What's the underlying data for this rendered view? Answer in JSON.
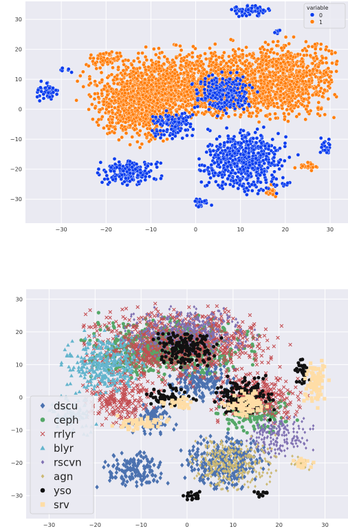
{
  "chart_data": [
    {
      "type": "scatter",
      "title": "",
      "xlabel": "",
      "ylabel": "",
      "xlim": [
        -38,
        34
      ],
      "ylim": [
        -38,
        36
      ],
      "xticks": [
        -30,
        -20,
        -10,
        0,
        10,
        20,
        30
      ],
      "yticks": [
        -30,
        -20,
        -10,
        0,
        10,
        20,
        30
      ],
      "grid": true,
      "legend": {
        "title": "variable",
        "position": "top-right",
        "marker": "circle"
      },
      "series": [
        {
          "name": "1",
          "color": "#ff7f0e",
          "regions": [
            {
              "center": [
                -1,
                8
              ],
              "extent": [
                -27,
                29,
                -3,
                27
              ]
            },
            {
              "center": [
                20,
                10
              ],
              "extent": [
                3,
                32,
                -5,
                28
              ]
            },
            {
              "center": [
                -13,
                1
              ],
              "extent": [
                -27,
                -2,
                -14,
                15
              ]
            },
            {
              "center": [
                -20,
                17
              ],
              "extent": [
                -24,
                -14,
                14,
                20
              ]
            },
            {
              "center": [
                17,
                -27
              ],
              "extent": [
                14,
                18,
                -31,
                -24
              ]
            },
            {
              "center": [
                25,
                -19
              ],
              "extent": [
                22,
                29,
                -21,
                -17
              ]
            }
          ]
        },
        {
          "name": "0",
          "color": "#0b3dee",
          "regions": [
            {
              "center": [
                11,
                -17
              ],
              "extent": [
                0,
                25,
                -30,
                -4
              ]
            },
            {
              "center": [
                -15,
                -21
              ],
              "extent": [
                -22,
                -4,
                -27,
                -16
              ]
            },
            {
              "center": [
                6,
                5
              ],
              "extent": [
                -2,
                15,
                -4,
                13
              ]
            },
            {
              "center": [
                -5,
                -5
              ],
              "extent": [
                -10,
                3,
                -11,
                0
              ]
            },
            {
              "center": [
                12,
                33
              ],
              "extent": [
                5,
                18,
                30,
                35
              ]
            },
            {
              "center": [
                -33,
                6
              ],
              "extent": [
                -36,
                -30,
                2,
                10
              ]
            },
            {
              "center": [
                -29,
                13
              ],
              "extent": [
                -31,
                -27,
                12,
                14
              ]
            },
            {
              "center": [
                1,
                -31
              ],
              "extent": [
                -3,
                4,
                -33,
                -29
              ]
            },
            {
              "center": [
                29,
                -12
              ],
              "extent": [
                27,
                31,
                -16,
                -9
              ]
            },
            {
              "center": [
                20,
                -25
              ],
              "extent": [
                18,
                22,
                -26,
                -24
              ]
            },
            {
              "center": [
                18,
                26
              ],
              "extent": [
                17,
                20,
                25,
                27
              ]
            }
          ]
        }
      ]
    },
    {
      "type": "scatter",
      "title": "",
      "xlabel": "",
      "ylabel": "",
      "xlim": [
        -35,
        35
      ],
      "ylim": [
        -37,
        33
      ],
      "xticks": [
        -30,
        -20,
        -10,
        0,
        10,
        20,
        30
      ],
      "yticks": [
        -30,
        -20,
        -10,
        0,
        10,
        20,
        30
      ],
      "grid": true,
      "legend": {
        "position": "lower-left"
      },
      "series": [
        {
          "name": "dscu",
          "marker": "diamond",
          "color": "#4c72b0",
          "regions": [
            {
              "center": [
                -12,
                -22
              ],
              "extent": [
                -20,
                -3,
                -28,
                -14
              ]
            },
            {
              "center": [
                8,
                -20
              ],
              "extent": [
                -2,
                20,
                -30,
                -8
              ]
            },
            {
              "center": [
                3,
                5
              ],
              "extent": [
                -5,
                12,
                -3,
                13
              ]
            },
            {
              "center": [
                -8,
                -7
              ],
              "extent": [
                -14,
                0,
                -12,
                -1
              ]
            }
          ]
        },
        {
          "name": "ceph",
          "marker": "circle",
          "color": "#55a868",
          "regions": [
            {
              "center": [
                -5,
                15
              ],
              "extent": [
                -25,
                20,
                5,
                28
              ]
            },
            {
              "center": [
                15,
                -5
              ],
              "extent": [
                5,
                25,
                -12,
                2
              ]
            }
          ]
        },
        {
          "name": "rrlyr",
          "marker": "x",
          "color": "#c44e52",
          "regions": [
            {
              "center": [
                -2,
                16
              ],
              "extent": [
                -25,
                28,
                2,
                29
              ]
            },
            {
              "center": [
                -15,
                0
              ],
              "extent": [
                -24,
                -5,
                -10,
                10
              ]
            },
            {
              "center": [
                15,
                0
              ],
              "extent": [
                5,
                30,
                -8,
                12
              ]
            }
          ]
        },
        {
          "name": "blyr",
          "marker": "triangle",
          "color": "#64b5cd",
          "regions": [
            {
              "center": [
                -18,
                10
              ],
              "extent": [
                -30,
                -8,
                0,
                22
              ]
            },
            {
              "center": [
                -25,
                -5
              ],
              "extent": [
                -31,
                -19,
                -12,
                2
              ]
            }
          ]
        },
        {
          "name": "rscvn",
          "marker": "diamond-small",
          "color": "#8172b3",
          "regions": [
            {
              "center": [
                0,
                20
              ],
              "extent": [
                -15,
                20,
                10,
                28
              ]
            },
            {
              "center": [
                20,
                -12
              ],
              "extent": [
                10,
                28,
                -20,
                -4
              ]
            }
          ]
        },
        {
          "name": "agn",
          "marker": "diamond-small",
          "color": "#ccb974",
          "regions": [
            {
              "center": [
                10,
                -20
              ],
              "extent": [
                0,
                25,
                -30,
                -10
              ]
            },
            {
              "center": [
                25,
                -20
              ],
              "extent": [
                22,
                28,
                -23,
                -17
              ]
            }
          ]
        },
        {
          "name": "yso",
          "marker": "circle",
          "color": "#111111",
          "regions": [
            {
              "center": [
                12,
                0
              ],
              "extent": [
                5,
                22,
                -8,
                8
              ]
            },
            {
              "center": [
                -4,
                0
              ],
              "extent": [
                -10,
                3,
                -4,
                4
              ]
            },
            {
              "center": [
                0,
                15
              ],
              "extent": [
                -8,
                10,
                5,
                20
              ]
            },
            {
              "center": [
                25,
                8
              ],
              "extent": [
                22,
                27,
                2,
                12
              ]
            },
            {
              "center": [
                16,
                -29
              ],
              "extent": [
                14,
                18,
                -31,
                -27
              ]
            },
            {
              "center": [
                1,
                -30
              ],
              "extent": [
                -2,
                4,
                -33,
                -28
              ]
            }
          ]
        },
        {
          "name": "srv",
          "marker": "square",
          "color": "#ffdda6",
          "regions": [
            {
              "center": [
                28,
                5
              ],
              "extent": [
                25,
                32,
                -5,
                12
              ]
            },
            {
              "center": [
                13,
                -2
              ],
              "extent": [
                7,
                20,
                -7,
                3
              ]
            },
            {
              "center": [
                -10,
                -8
              ],
              "extent": [
                -18,
                -3,
                -11,
                -5
              ]
            },
            {
              "center": [
                -2,
                -2
              ],
              "extent": [
                -6,
                2,
                -5,
                1
              ]
            },
            {
              "center": [
                25,
                -20
              ],
              "extent": [
                22,
                28,
                -22,
                -17
              ]
            }
          ]
        }
      ]
    }
  ]
}
